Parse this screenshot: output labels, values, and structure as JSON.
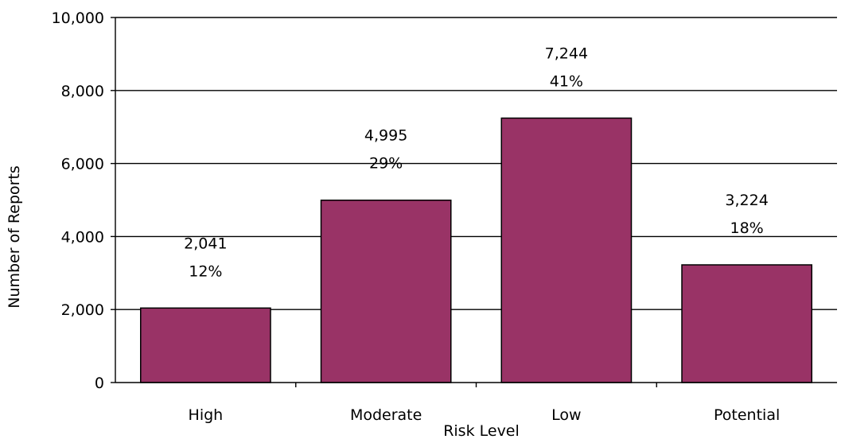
{
  "chart_data": {
    "type": "bar",
    "categories": [
      "High",
      "Moderate",
      "Low",
      "Potential"
    ],
    "values": [
      2041,
      4995,
      7244,
      3224
    ],
    "value_labels": [
      "2,041",
      "4,995",
      "7,244",
      "3,224"
    ],
    "percent_labels": [
      "12%",
      "29%",
      "41%",
      "18%"
    ],
    "xlabel": "Risk Level",
    "ylabel": "Number of Reports",
    "ylim": [
      0,
      10000
    ],
    "yticks": [
      0,
      2000,
      4000,
      6000,
      8000,
      10000
    ],
    "ytick_labels": [
      "0",
      "2,000",
      "4,000",
      "6,000",
      "8,000",
      "10,000"
    ],
    "grid": "horizontal major gridlines",
    "legend": "none",
    "bar_color": "#993366",
    "bar_edge_color": "#000000"
  }
}
